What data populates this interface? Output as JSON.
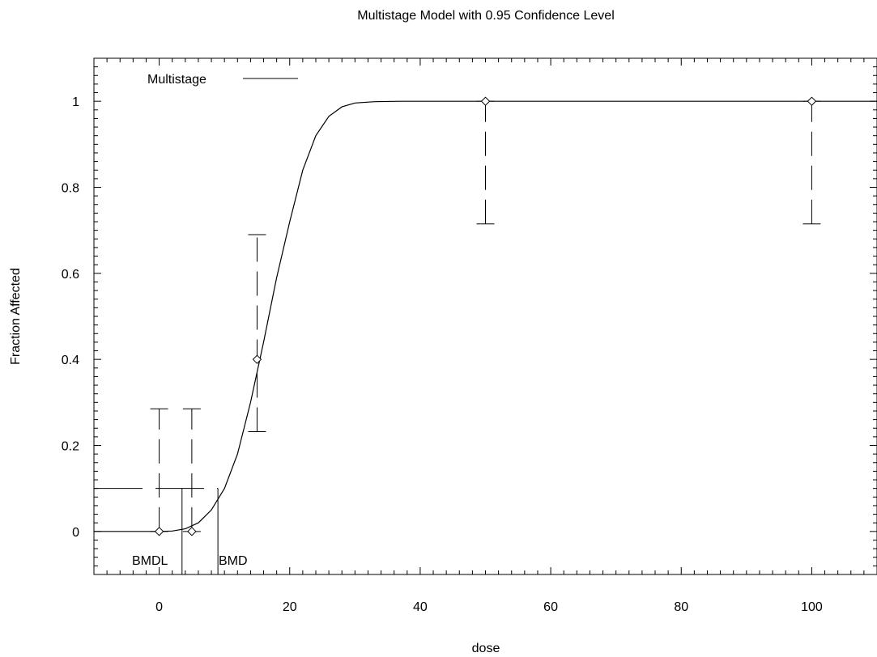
{
  "chart_data": {
    "type": "scatter",
    "title": "Multistage Model with 0.95 Confidence Level",
    "xlabel": "dose",
    "ylabel": "Fraction Affected",
    "xlim": [
      -10,
      110
    ],
    "ylim": [
      -0.1,
      1.1
    ],
    "x_ticks": [
      0,
      20,
      40,
      60,
      80,
      100
    ],
    "y_ticks": [
      0,
      0.2,
      0.4,
      0.6,
      0.8,
      1
    ],
    "x_tick_labels": [
      "0",
      "20",
      "40",
      "60",
      "80",
      "100"
    ],
    "y_tick_labels": [
      "0",
      "0.2",
      "0.4",
      "0.6",
      "0.8",
      "1"
    ],
    "legend": {
      "entries": [
        "Multistage"
      ],
      "placement": "top-left"
    },
    "points": [
      {
        "x": 0,
        "y": 0,
        "lower": 0,
        "upper": 0.285
      },
      {
        "x": 5,
        "y": 0,
        "lower": 0,
        "upper": 0.285
      },
      {
        "x": 15,
        "y": 0.4,
        "lower": 0.232,
        "upper": 0.69
      },
      {
        "x": 50,
        "y": 1,
        "lower": 0.715,
        "upper": 1
      },
      {
        "x": 100,
        "y": 1,
        "lower": 0.715,
        "upper": 1
      }
    ],
    "model": {
      "name": "Multistage",
      "curve": [
        {
          "x": -10,
          "y": 0
        },
        {
          "x": 0,
          "y": 0
        },
        {
          "x": 2,
          "y": 0.001
        },
        {
          "x": 4,
          "y": 0.006
        },
        {
          "x": 6,
          "y": 0.02
        },
        {
          "x": 8,
          "y": 0.05
        },
        {
          "x": 10,
          "y": 0.1
        },
        {
          "x": 12,
          "y": 0.18
        },
        {
          "x": 14,
          "y": 0.3
        },
        {
          "x": 16,
          "y": 0.44
        },
        {
          "x": 18,
          "y": 0.59
        },
        {
          "x": 20,
          "y": 0.72
        },
        {
          "x": 22,
          "y": 0.84
        },
        {
          "x": 24,
          "y": 0.92
        },
        {
          "x": 26,
          "y": 0.965
        },
        {
          "x": 28,
          "y": 0.987
        },
        {
          "x": 30,
          "y": 0.996
        },
        {
          "x": 33,
          "y": 0.999
        },
        {
          "x": 37,
          "y": 1
        },
        {
          "x": 110,
          "y": 1
        }
      ]
    },
    "bmr": 0.1,
    "bmd": 9,
    "bmdl": 3.5,
    "annotations": [
      "BMDL",
      "BMD"
    ]
  }
}
